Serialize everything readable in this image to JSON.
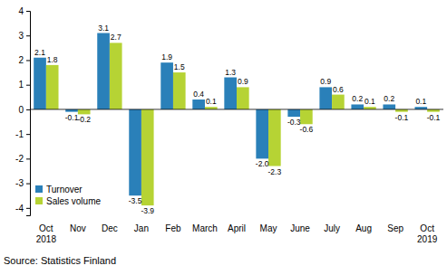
{
  "chart_data": {
    "type": "bar",
    "categories": [
      "Oct 2018",
      "Nov",
      "Dec",
      "Jan",
      "Feb",
      "March",
      "April",
      "May",
      "June",
      "July",
      "Aug",
      "Sep",
      "Oct 2019"
    ],
    "series": [
      {
        "name": "Turnover",
        "color": "#2a80b9",
        "values": [
          2.1,
          -0.1,
          3.1,
          -3.5,
          1.9,
          0.4,
          1.3,
          -2.0,
          -0.3,
          0.9,
          0.2,
          0.2,
          0.1
        ],
        "value_labels": [
          "2.1",
          "-0.1",
          "3.1",
          "-3.5",
          "1.9",
          "0.4",
          "1.3",
          "-2.0",
          "-0.3",
          "0.9",
          "0.2",
          "0.2",
          "0.1"
        ]
      },
      {
        "name": "Sales volume",
        "color": "#b6d334",
        "values": [
          1.8,
          -0.2,
          2.7,
          -3.9,
          1.5,
          0.1,
          0.9,
          -2.3,
          -0.6,
          0.6,
          0.1,
          -0.1,
          -0.1
        ]
      }
    ],
    "ylim": [
      -4.3,
      4
    ],
    "yticks": [
      -4,
      -3,
      -2,
      -1,
      0,
      1,
      2,
      3,
      4
    ],
    "grid": false,
    "legend": "lower left",
    "data_labels": true,
    "annotations": [
      "Source: Statistics Finland"
    ]
  }
}
